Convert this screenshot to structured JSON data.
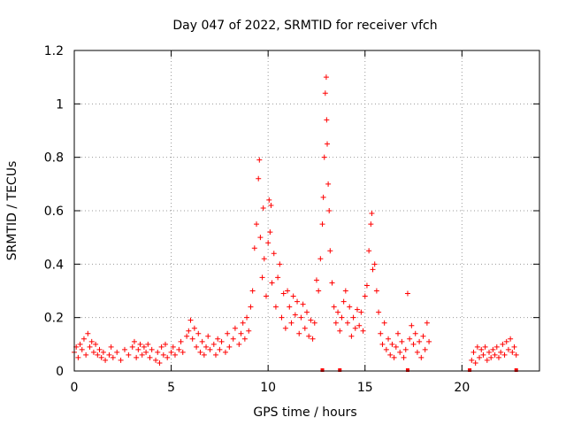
{
  "chart_data": {
    "type": "scatter",
    "title": "Day 047 of 2022, SRMTID for receiver vfch",
    "xlabel": "GPS time / hours",
    "ylabel": "SRMTID / TECUs",
    "xlim": [
      0,
      24
    ],
    "ylim": [
      0,
      1.2
    ],
    "x_ticks": [
      0,
      5,
      10,
      15,
      20
    ],
    "x_tick_labels": [
      "0",
      "5",
      "10",
      "15",
      "20"
    ],
    "y_ticks": [
      0,
      0.2,
      0.4,
      0.6,
      0.8,
      1,
      1.2
    ],
    "y_tick_labels": [
      "0",
      "0.2",
      "0.4",
      "0.6",
      "0.8",
      "1",
      "1.2"
    ],
    "grid": true,
    "marker": "+",
    "color": "#ff0000",
    "series": [
      {
        "name": "SRMTID",
        "points": [
          [
            0.0,
            0.07
          ],
          [
            0.1,
            0.09
          ],
          [
            0.2,
            0.05
          ],
          [
            0.3,
            0.1
          ],
          [
            0.4,
            0.08
          ],
          [
            0.5,
            0.12
          ],
          [
            0.6,
            0.06
          ],
          [
            0.7,
            0.14
          ],
          [
            0.8,
            0.09
          ],
          [
            0.9,
            0.11
          ],
          [
            1.0,
            0.07
          ],
          [
            1.1,
            0.1
          ],
          [
            1.2,
            0.06
          ],
          [
            1.3,
            0.08
          ],
          [
            1.4,
            0.05
          ],
          [
            1.5,
            0.07
          ],
          [
            1.6,
            0.04
          ],
          [
            1.8,
            0.06
          ],
          [
            1.9,
            0.09
          ],
          [
            2.0,
            0.05
          ],
          [
            2.2,
            0.07
          ],
          [
            2.4,
            0.04
          ],
          [
            2.6,
            0.08
          ],
          [
            2.8,
            0.06
          ],
          [
            3.0,
            0.09
          ],
          [
            3.1,
            0.11
          ],
          [
            3.2,
            0.05
          ],
          [
            3.3,
            0.08
          ],
          [
            3.4,
            0.1
          ],
          [
            3.5,
            0.06
          ],
          [
            3.6,
            0.09
          ],
          [
            3.7,
            0.07
          ],
          [
            3.8,
            0.1
          ],
          [
            3.9,
            0.05
          ],
          [
            4.0,
            0.08
          ],
          [
            4.2,
            0.04
          ],
          [
            4.3,
            0.07
          ],
          [
            4.4,
            0.03
          ],
          [
            4.5,
            0.09
          ],
          [
            4.6,
            0.06
          ],
          [
            4.7,
            0.1
          ],
          [
            4.8,
            0.05
          ],
          [
            5.0,
            0.07
          ],
          [
            5.1,
            0.09
          ],
          [
            5.2,
            0.06
          ],
          [
            5.4,
            0.08
          ],
          [
            5.5,
            0.11
          ],
          [
            5.6,
            0.07
          ],
          [
            5.8,
            0.13
          ],
          [
            5.9,
            0.15
          ],
          [
            6.0,
            0.19
          ],
          [
            6.1,
            0.12
          ],
          [
            6.2,
            0.16
          ],
          [
            6.3,
            0.09
          ],
          [
            6.4,
            0.14
          ],
          [
            6.5,
            0.07
          ],
          [
            6.6,
            0.11
          ],
          [
            6.7,
            0.06
          ],
          [
            6.8,
            0.09
          ],
          [
            6.9,
            0.13
          ],
          [
            7.0,
            0.08
          ],
          [
            7.2,
            0.1
          ],
          [
            7.3,
            0.06
          ],
          [
            7.4,
            0.12
          ],
          [
            7.5,
            0.08
          ],
          [
            7.6,
            0.11
          ],
          [
            7.8,
            0.07
          ],
          [
            7.9,
            0.14
          ],
          [
            8.0,
            0.09
          ],
          [
            8.2,
            0.12
          ],
          [
            8.3,
            0.16
          ],
          [
            8.5,
            0.1
          ],
          [
            8.6,
            0.14
          ],
          [
            8.7,
            0.18
          ],
          [
            8.8,
            0.12
          ],
          [
            8.9,
            0.2
          ],
          [
            9.0,
            0.15
          ],
          [
            9.1,
            0.24
          ],
          [
            9.2,
            0.3
          ],
          [
            9.3,
            0.46
          ],
          [
            9.4,
            0.55
          ],
          [
            9.5,
            0.72
          ],
          [
            9.55,
            0.79
          ],
          [
            9.6,
            0.5
          ],
          [
            9.7,
            0.35
          ],
          [
            9.75,
            0.61
          ],
          [
            9.8,
            0.42
          ],
          [
            9.9,
            0.28
          ],
          [
            10.0,
            0.48
          ],
          [
            10.05,
            0.64
          ],
          [
            10.1,
            0.52
          ],
          [
            10.15,
            0.62
          ],
          [
            10.2,
            0.33
          ],
          [
            10.3,
            0.44
          ],
          [
            10.4,
            0.24
          ],
          [
            10.5,
            0.35
          ],
          [
            10.6,
            0.4
          ],
          [
            10.7,
            0.2
          ],
          [
            10.8,
            0.29
          ],
          [
            10.9,
            0.16
          ],
          [
            11.0,
            0.3
          ],
          [
            11.1,
            0.24
          ],
          [
            11.2,
            0.18
          ],
          [
            11.3,
            0.28
          ],
          [
            11.4,
            0.21
          ],
          [
            11.5,
            0.26
          ],
          [
            11.6,
            0.14
          ],
          [
            11.7,
            0.2
          ],
          [
            11.8,
            0.25
          ],
          [
            11.9,
            0.16
          ],
          [
            12.0,
            0.22
          ],
          [
            12.1,
            0.13
          ],
          [
            12.2,
            0.19
          ],
          [
            12.3,
            0.12
          ],
          [
            12.4,
            0.18
          ],
          [
            12.5,
            0.34
          ],
          [
            12.6,
            0.3
          ],
          [
            12.7,
            0.42
          ],
          [
            12.8,
            0.55
          ],
          [
            12.85,
            0.65
          ],
          [
            12.9,
            0.8
          ],
          [
            12.95,
            1.04
          ],
          [
            13.0,
            1.1
          ],
          [
            13.02,
            0.94
          ],
          [
            13.05,
            0.85
          ],
          [
            13.1,
            0.7
          ],
          [
            13.15,
            0.6
          ],
          [
            13.2,
            0.45
          ],
          [
            13.3,
            0.33
          ],
          [
            13.4,
            0.24
          ],
          [
            13.5,
            0.18
          ],
          [
            13.6,
            0.22
          ],
          [
            13.7,
            0.15
          ],
          [
            13.8,
            0.2
          ],
          [
            13.9,
            0.26
          ],
          [
            14.0,
            0.3
          ],
          [
            14.1,
            0.18
          ],
          [
            14.2,
            0.24
          ],
          [
            14.3,
            0.13
          ],
          [
            14.4,
            0.2
          ],
          [
            14.5,
            0.16
          ],
          [
            14.6,
            0.23
          ],
          [
            14.7,
            0.17
          ],
          [
            14.8,
            0.22
          ],
          [
            14.9,
            0.15
          ],
          [
            15.0,
            0.28
          ],
          [
            15.1,
            0.32
          ],
          [
            15.2,
            0.45
          ],
          [
            15.3,
            0.55
          ],
          [
            15.35,
            0.59
          ],
          [
            15.4,
            0.38
          ],
          [
            15.5,
            0.4
          ],
          [
            15.6,
            0.3
          ],
          [
            15.7,
            0.22
          ],
          [
            15.8,
            0.14
          ],
          [
            15.9,
            0.1
          ],
          [
            16.0,
            0.18
          ],
          [
            16.1,
            0.08
          ],
          [
            16.2,
            0.12
          ],
          [
            16.3,
            0.06
          ],
          [
            16.4,
            0.1
          ],
          [
            16.5,
            0.05
          ],
          [
            16.6,
            0.09
          ],
          [
            16.7,
            0.14
          ],
          [
            16.8,
            0.07
          ],
          [
            16.9,
            0.11
          ],
          [
            17.0,
            0.05
          ],
          [
            17.1,
            0.08
          ],
          [
            17.2,
            0.29
          ],
          [
            17.3,
            0.12
          ],
          [
            17.4,
            0.17
          ],
          [
            17.5,
            0.1
          ],
          [
            17.6,
            0.14
          ],
          [
            17.7,
            0.07
          ],
          [
            17.8,
            0.11
          ],
          [
            17.9,
            0.05
          ],
          [
            18.0,
            0.13
          ],
          [
            18.1,
            0.08
          ],
          [
            18.2,
            0.18
          ],
          [
            18.3,
            0.11
          ],
          [
            20.5,
            0.04
          ],
          [
            20.6,
            0.07
          ],
          [
            20.7,
            0.03
          ],
          [
            20.8,
            0.09
          ],
          [
            20.9,
            0.05
          ],
          [
            21.0,
            0.08
          ],
          [
            21.1,
            0.06
          ],
          [
            21.2,
            0.09
          ],
          [
            21.3,
            0.04
          ],
          [
            21.4,
            0.07
          ],
          [
            21.5,
            0.05
          ],
          [
            21.6,
            0.08
          ],
          [
            21.7,
            0.06
          ],
          [
            21.8,
            0.09
          ],
          [
            21.9,
            0.05
          ],
          [
            22.0,
            0.07
          ],
          [
            22.1,
            0.1
          ],
          [
            22.2,
            0.06
          ],
          [
            22.3,
            0.11
          ],
          [
            22.4,
            0.08
          ],
          [
            22.5,
            0.12
          ],
          [
            22.6,
            0.07
          ],
          [
            22.7,
            0.09
          ],
          [
            22.8,
            0.06
          ]
        ]
      }
    ],
    "gap_markers_x": [
      12.8,
      13.7,
      17.2,
      20.4,
      22.8
    ]
  }
}
